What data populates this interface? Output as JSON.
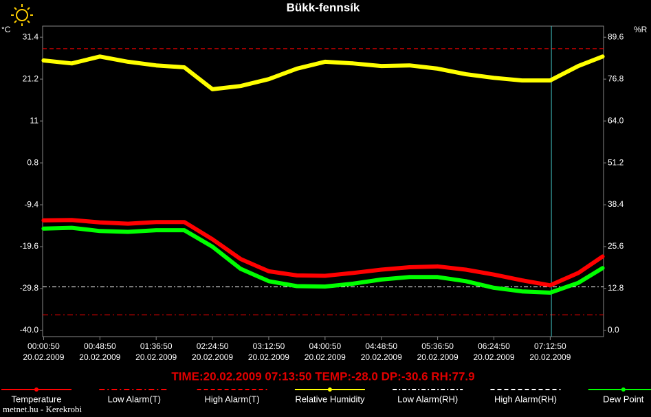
{
  "chart_data": {
    "type": "line",
    "title": "Bükk-fennsík",
    "y_unit": "°C",
    "y2_unit": "%R",
    "x": [
      50,
      1490,
      2930,
      4370,
      5810,
      7250,
      8690,
      10130,
      11570,
      13010,
      14450,
      15890,
      17330,
      18770,
      20210,
      21650,
      23090,
      24530,
      25970,
      27410,
      28650
    ],
    "xlim": [
      0,
      28700
    ],
    "xticks": [
      {
        "value": 50,
        "label": "00:00:50"
      },
      {
        "value": 2930,
        "label": "00:48:50"
      },
      {
        "value": 5810,
        "label": "01:36:50"
      },
      {
        "value": 8690,
        "label": "02:24:50"
      },
      {
        "value": 11570,
        "label": "03:12:50"
      },
      {
        "value": 14450,
        "label": "04:00:50"
      },
      {
        "value": 17330,
        "label": "04:48:50"
      },
      {
        "value": 20210,
        "label": "05:36:50"
      },
      {
        "value": 23090,
        "label": "06:24:50"
      },
      {
        "value": 25970,
        "label": "07:12:50"
      }
    ],
    "xtick_dates": [
      "20.02.2009",
      "20.02.2009",
      "20.02.2009",
      "20.02.2009",
      "20.02.2009",
      "20.02.2009",
      "20.02.2009",
      "20.02.2009",
      "20.02.2009",
      "20.02.2009"
    ],
    "ylim": [
      -41.5,
      34.1
    ],
    "yticks": [
      31.4,
      21.2,
      11.0,
      0.8,
      -9.4,
      -19.6,
      -29.8,
      {
        "value": -40.0,
        "label": "-40.0"
      }
    ],
    "y2lim": [
      -1.9,
      93.0
    ],
    "y2ticks": [
      89.6,
      76.8,
      {
        "value": 64.0,
        "label": "64.0"
      },
      51.2,
      38.4,
      25.6,
      12.8,
      {
        "value": 0.0,
        "label": "0.0"
      }
    ],
    "series": [
      {
        "name": "Temperature",
        "color": "#ff0000",
        "values": [
          -13.2,
          -13.1,
          -13.7,
          -14.0,
          -13.6,
          -13.6,
          -17.8,
          -22.6,
          -25.6,
          -26.6,
          -26.7,
          -26.0,
          -25.2,
          -24.6,
          -24.4,
          -25.2,
          -26.4,
          -27.8,
          -29.0,
          -26.0,
          -22.0
        ]
      },
      {
        "name": "Relative Humidity",
        "color": "#ffff00",
        "axis": "y2",
        "values": [
          82.5,
          81.6,
          83.7,
          82.1,
          81.0,
          80.4,
          73.7,
          74.7,
          76.8,
          80.0,
          82.1,
          81.6,
          80.8,
          81.0,
          80.0,
          78.3,
          77.2,
          76.4,
          76.4,
          80.8,
          83.7
        ]
      },
      {
        "name": "Dew Point",
        "color": "#00ff00",
        "values": [
          -15.2,
          -15.0,
          -15.8,
          -16.0,
          -15.6,
          -15.6,
          -19.6,
          -25.0,
          -28.0,
          -29.2,
          -29.3,
          -28.6,
          -27.6,
          -27.0,
          -27.0,
          -28.0,
          -29.6,
          -30.5,
          -30.8,
          -28.4,
          -24.8
        ]
      }
    ],
    "alarms": [
      {
        "name": "Low Alarm(T)",
        "color": "#ff0000",
        "value": -36.2
      },
      {
        "name": "High Alarm(T)",
        "color": "#ff0000",
        "value": 28.6
      },
      {
        "name": "Low Alarm(RH)",
        "color": "#ffffff",
        "axis": "y2",
        "value": 13.3
      },
      {
        "name": "High Alarm(RH)",
        "color": "#ffffff",
        "axis": "y2"
      }
    ],
    "cursor_x": 26030,
    "cursor_color": "#40c0c0",
    "status": "TIME:20.02.2009 07:13:50    TEMP:-28.0  DP:-30.6  RH:77.9",
    "footer": "metnet.hu - Kerekrobi"
  }
}
